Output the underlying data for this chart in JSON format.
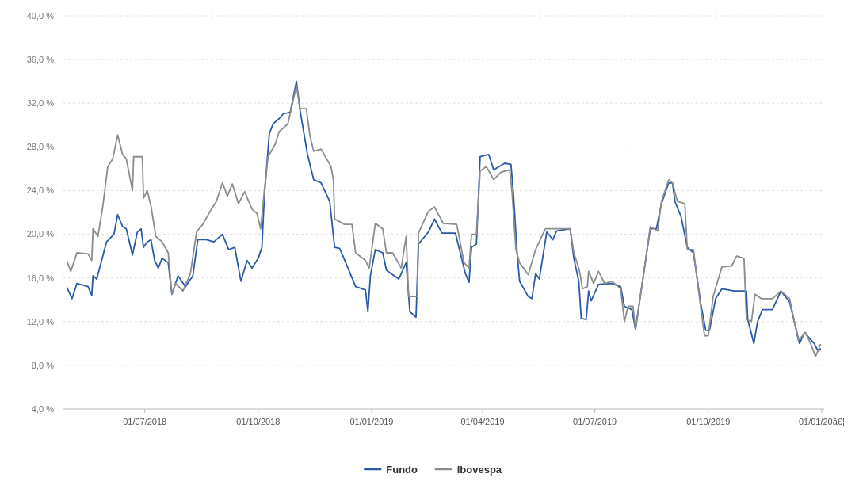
{
  "chart_data": {
    "type": "line",
    "xlim": [
      "2018-04-26",
      "2020-01-03"
    ],
    "xticks": [
      {
        "value": "2018-07-01",
        "label": "01/07/2018"
      },
      {
        "value": "2018-10-01",
        "label": "01/10/2018"
      },
      {
        "value": "2019-01-01",
        "label": "01/01/2019"
      },
      {
        "value": "2019-04-01",
        "label": "01/04/2019"
      },
      {
        "value": "2019-07-01",
        "label": "01/07/2019"
      },
      {
        "value": "2019-10-01",
        "label": "01/10/2019"
      },
      {
        "value": "2020-01-01",
        "label": "01/01/20â€¦"
      }
    ],
    "ylim": [
      4,
      40
    ],
    "yticks": [
      {
        "value": 4,
        "label": "4,0 %"
      },
      {
        "value": 8,
        "label": "8,0 %"
      },
      {
        "value": 12,
        "label": "12,0 %"
      },
      {
        "value": 16,
        "label": "16,0 %"
      },
      {
        "value": 20,
        "label": "20,0 %"
      },
      {
        "value": 24,
        "label": "24,0 %"
      },
      {
        "value": 28,
        "label": "28,0 %"
      },
      {
        "value": 32,
        "label": "32,0 %"
      },
      {
        "value": 36,
        "label": "36,0 %"
      },
      {
        "value": 40,
        "label": "40,0 %"
      }
    ],
    "grid": "y",
    "legend": "bottom",
    "marker": "none",
    "line_style": "solid",
    "series": [
      {
        "name": "Fundo",
        "color": "#2b5aa8",
        "x": [
          "2018-04-29",
          "2018-05-03",
          "2018-05-07",
          "2018-05-16",
          "2018-05-19",
          "2018-05-20",
          "2018-05-23",
          "2018-05-31",
          "2018-06-06",
          "2018-06-09",
          "2018-06-13",
          "2018-06-16",
          "2018-06-21",
          "2018-06-25",
          "2018-06-28",
          "2018-06-30",
          "2018-07-03",
          "2018-07-06",
          "2018-07-09",
          "2018-07-12",
          "2018-07-15",
          "2018-07-20",
          "2018-07-23",
          "2018-07-28",
          "2018-08-03",
          "2018-08-09",
          "2018-08-13",
          "2018-08-20",
          "2018-08-26",
          "2018-09-02",
          "2018-09-07",
          "2018-09-12",
          "2018-09-17",
          "2018-09-22",
          "2018-09-26",
          "2018-10-01",
          "2018-10-04",
          "2018-10-06",
          "2018-10-10",
          "2018-10-13",
          "2018-10-18",
          "2018-10-21",
          "2018-10-27",
          "2018-11-01",
          "2018-11-04",
          "2018-11-10",
          "2018-11-15",
          "2018-11-21",
          "2018-11-28",
          "2018-12-02",
          "2018-12-06",
          "2018-12-11",
          "2018-12-19",
          "2018-12-27",
          "2018-12-29",
          "2018-12-31",
          "2019-01-04",
          "2019-01-10",
          "2019-01-13",
          "2019-01-23",
          "2019-01-29",
          "2019-02-01",
          "2019-02-06",
          "2019-02-08",
          "2019-02-16",
          "2019-02-21",
          "2019-02-27",
          "2019-03-10",
          "2019-03-18",
          "2019-03-21",
          "2019-03-23",
          "2019-03-27",
          "2019-03-30",
          "2019-04-06",
          "2019-04-10",
          "2019-04-19",
          "2019-04-24",
          "2019-04-26",
          "2019-04-29",
          "2019-05-01",
          "2019-05-08",
          "2019-05-11",
          "2019-05-14",
          "2019-05-17",
          "2019-05-23",
          "2019-05-28",
          "2019-05-31",
          "2019-06-11",
          "2019-06-14",
          "2019-06-18",
          "2019-06-20",
          "2019-06-24",
          "2019-06-26",
          "2019-06-28",
          "2019-07-04",
          "2019-07-15",
          "2019-07-22",
          "2019-07-25",
          "2019-07-31",
          "2019-08-03",
          "2019-08-09",
          "2019-08-15",
          "2019-08-20",
          "2019-08-24",
          "2019-08-30",
          "2019-09-02",
          "2019-09-04",
          "2019-09-09",
          "2019-09-14",
          "2019-09-19",
          "2019-09-25",
          "2019-09-29",
          "2019-10-02",
          "2019-10-07",
          "2019-10-12",
          "2019-10-22",
          "2019-11-01",
          "2019-11-02",
          "2019-11-07",
          "2019-11-10",
          "2019-11-14",
          "2019-11-22",
          "2019-11-29",
          "2019-12-06",
          "2019-12-14",
          "2019-12-18",
          "2019-12-26",
          "2019-12-29",
          "2019-12-31"
        ],
        "values": [
          15.1,
          14.1,
          15.5,
          15.2,
          14.4,
          16.2,
          15.9,
          19.3,
          20.0,
          21.8,
          20.7,
          20.5,
          18.1,
          20.2,
          20.5,
          18.8,
          19.3,
          19.5,
          17.6,
          16.9,
          17.8,
          17.4,
          14.5,
          16.2,
          15.2,
          16.2,
          19.5,
          19.5,
          19.3,
          20.0,
          18.6,
          18.8,
          15.7,
          17.6,
          16.9,
          17.8,
          18.8,
          23.5,
          29.2,
          30.1,
          30.6,
          31.0,
          31.2,
          34.0,
          31.3,
          27.3,
          25.0,
          24.7,
          23.0,
          18.8,
          18.7,
          17.4,
          15.2,
          14.9,
          12.9,
          16.2,
          18.6,
          18.3,
          16.7,
          15.9,
          17.4,
          12.9,
          12.4,
          19.1,
          20.2,
          21.4,
          20.1,
          20.1,
          16.4,
          15.6,
          18.8,
          19.1,
          27.1,
          27.3,
          25.9,
          26.5,
          26.4,
          23.7,
          18.3,
          15.7,
          14.3,
          14.1,
          16.4,
          15.9,
          20.2,
          19.5,
          20.3,
          20.5,
          17.8,
          15.7,
          12.3,
          12.2,
          14.8,
          13.9,
          15.4,
          15.5,
          15.2,
          13.4,
          13.1,
          11.3,
          15.9,
          20.5,
          20.5,
          22.8,
          24.7,
          24.7,
          23.0,
          21.6,
          18.8,
          18.3,
          13.6,
          11.2,
          11.2,
          14.1,
          15.0,
          14.8,
          14.8,
          12.2,
          10.0,
          12.0,
          13.1,
          13.1,
          14.8,
          13.8,
          10.0,
          11.0,
          10.0,
          9.3,
          9.5
        ]
      },
      {
        "name": "Ibovespa",
        "color": "#8c8c8c",
        "x": [
          "2018-04-29",
          "2018-05-02",
          "2018-05-07",
          "2018-05-16",
          "2018-05-19",
          "2018-05-20",
          "2018-05-24",
          "2018-05-28",
          "2018-06-01",
          "2018-06-05",
          "2018-06-09",
          "2018-06-13",
          "2018-06-16",
          "2018-06-21",
          "2018-06-22",
          "2018-06-29",
          "2018-06-30",
          "2018-07-03",
          "2018-07-06",
          "2018-07-10",
          "2018-07-15",
          "2018-07-20",
          "2018-07-23",
          "2018-07-26",
          "2018-08-01",
          "2018-08-07",
          "2018-08-12",
          "2018-08-17",
          "2018-08-23",
          "2018-08-28",
          "2018-09-02",
          "2018-09-06",
          "2018-09-10",
          "2018-09-15",
          "2018-09-20",
          "2018-09-26",
          "2018-09-30",
          "2018-10-03",
          "2018-10-06",
          "2018-10-09",
          "2018-10-15",
          "2018-10-18",
          "2018-10-25",
          "2018-11-01",
          "2018-11-04",
          "2018-11-09",
          "2018-11-12",
          "2018-11-15",
          "2018-11-21",
          "2018-11-29",
          "2018-12-01",
          "2018-12-02",
          "2018-12-10",
          "2018-12-16",
          "2018-12-19",
          "2018-12-27",
          "2018-12-30",
          "2019-01-04",
          "2019-01-10",
          "2019-01-13",
          "2019-01-18",
          "2019-01-25",
          "2019-01-29",
          "2019-01-31",
          "2019-02-07",
          "2019-02-08",
          "2019-02-16",
          "2019-02-21",
          "2019-02-28",
          "2019-03-11",
          "2019-03-17",
          "2019-03-21",
          "2019-03-23",
          "2019-03-27",
          "2019-03-30",
          "2019-04-04",
          "2019-04-10",
          "2019-04-16",
          "2019-04-23",
          "2019-04-25",
          "2019-04-28",
          "2019-05-01",
          "2019-05-08",
          "2019-05-14",
          "2019-05-22",
          "2019-06-11",
          "2019-06-14",
          "2019-06-18",
          "2019-06-19",
          "2019-06-21",
          "2019-06-25",
          "2019-06-26",
          "2019-06-30",
          "2019-07-04",
          "2019-07-09",
          "2019-07-15",
          "2019-07-22",
          "2019-07-25",
          "2019-07-28",
          "2019-08-01",
          "2019-08-03",
          "2019-08-09",
          "2019-08-15",
          "2019-08-21",
          "2019-08-24",
          "2019-08-30",
          "2019-09-02",
          "2019-09-06",
          "2019-09-12",
          "2019-09-14",
          "2019-09-19",
          "2019-09-24",
          "2019-09-28",
          "2019-10-01",
          "2019-10-05",
          "2019-10-12",
          "2019-10-20",
          "2019-10-24",
          "2019-10-30",
          "2019-11-01",
          "2019-11-05",
          "2019-11-08",
          "2019-11-13",
          "2019-11-22",
          "2019-11-29",
          "2019-12-06",
          "2019-12-13",
          "2019-12-19",
          "2019-12-23",
          "2019-12-27",
          "2019-12-31"
        ],
        "values": [
          17.5,
          16.6,
          18.3,
          18.2,
          17.6,
          20.5,
          19.8,
          22.6,
          26.2,
          26.9,
          29.1,
          27.3,
          26.9,
          24.0,
          27.1,
          27.1,
          23.3,
          24.0,
          22.6,
          19.8,
          19.3,
          18.3,
          14.5,
          15.5,
          14.8,
          16.4,
          20.2,
          20.9,
          22.1,
          23.0,
          24.7,
          23.5,
          24.6,
          22.8,
          23.9,
          22.3,
          21.9,
          20.5,
          24.0,
          27.1,
          28.3,
          29.4,
          30.1,
          33.6,
          31.5,
          31.5,
          29.0,
          27.6,
          27.8,
          26.2,
          25.0,
          21.4,
          20.9,
          20.9,
          18.3,
          17.6,
          16.9,
          21.0,
          20.5,
          18.3,
          18.3,
          16.9,
          19.8,
          14.3,
          14.3,
          20.1,
          22.1,
          22.5,
          21.0,
          20.9,
          17.4,
          16.9,
          20.0,
          20.0,
          25.8,
          26.2,
          25.0,
          25.7,
          25.9,
          23.7,
          18.6,
          17.4,
          16.3,
          18.6,
          20.5,
          20.5,
          18.3,
          16.9,
          16.4,
          15.0,
          15.2,
          16.6,
          15.5,
          16.6,
          15.5,
          15.7,
          15.0,
          12.0,
          13.4,
          13.4,
          11.3,
          15.9,
          20.7,
          20.3,
          23.0,
          25.0,
          24.7,
          23.0,
          22.8,
          18.6,
          18.6,
          14.1,
          10.7,
          10.7,
          14.3,
          17.0,
          17.1,
          18.0,
          17.8,
          12.2,
          12.0,
          14.5,
          14.1,
          14.1,
          14.8,
          14.1,
          10.3,
          11.0,
          10.0,
          8.8,
          9.9
        ]
      }
    ]
  }
}
